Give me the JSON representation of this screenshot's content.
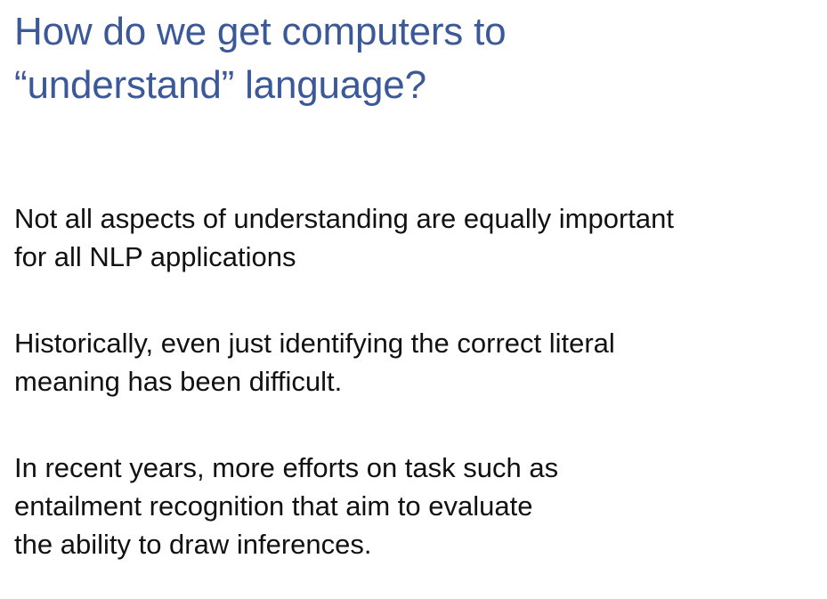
{
  "slide": {
    "title_lines": [
      "How do we get computers to",
      "“understand” language?"
    ],
    "paragraphs": [
      {
        "lines": [
          "Not all aspects of understanding are equally important",
          "for all NLP applications"
        ]
      },
      {
        "lines": [
          "Historically, even just identifying the correct literal",
          "meaning has been difficult."
        ]
      },
      {
        "lines": [
          "In recent years, more efforts on task such as",
          "entailment recognition that aim to evaluate",
          "the ability to draw inferences."
        ]
      }
    ]
  },
  "colors": {
    "title": "#3b5998",
    "body_text": "#111111",
    "background": "#ffffff"
  }
}
